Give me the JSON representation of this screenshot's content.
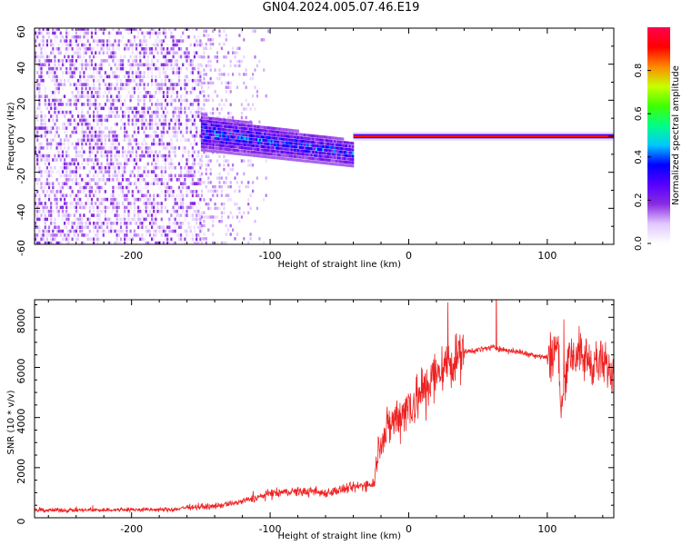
{
  "title": "GN04.2024.005.07.46.E19",
  "chart_data": [
    {
      "type": "heatmap",
      "xlabel": "Height of straight line (km)",
      "ylabel": "Frequency (Hz)",
      "xlim": [
        -270,
        148
      ],
      "ylim": [
        -60,
        60
      ],
      "xticks": [
        -200,
        -100,
        0,
        100
      ],
      "yticks": [
        -60,
        -40,
        -20,
        0,
        20,
        40,
        60
      ],
      "colorbar": {
        "label": "Normalized spectral amplitude",
        "range": [
          0,
          1
        ],
        "ticks": [
          0.0,
          0.2,
          0.4,
          0.6,
          0.8
        ],
        "colormap": [
          "#ffffff",
          "#e0c8ff",
          "#8a2be2",
          "#5500ff",
          "#0000ff",
          "#00c8ff",
          "#00ff88",
          "#40ff00",
          "#c8ff00",
          "#ff8800",
          "#ff0000",
          "#ff0050"
        ]
      },
      "regions": [
        {
          "x": [
            -270,
            -150
          ],
          "freq_spread": [
            -60,
            60
          ],
          "amplitude": [
            0.02,
            0.2
          ],
          "description": "broadband noise"
        },
        {
          "x": [
            -150,
            -40
          ],
          "freq_center": [
            2,
            -10
          ],
          "freq_halfwidth": [
            10,
            7
          ],
          "amplitude": [
            0.15,
            0.5
          ]
        },
        {
          "x": [
            -40,
            148
          ],
          "freq_center": 0,
          "amplitude": [
            0.8,
            0.95
          ]
        }
      ]
    },
    {
      "type": "line",
      "xlabel": "Height of straight line (km)",
      "ylabel": "SNR (10 * v/v)",
      "xlim": [
        -270,
        148
      ],
      "ylim": [
        0,
        8700
      ],
      "xticks": [
        -200,
        -100,
        0,
        100
      ],
      "yticks": [
        0,
        2000,
        4000,
        6000,
        8000
      ],
      "series": [
        {
          "color": "#ee2222",
          "points": [
            [
              -270,
              300
            ],
            [
              -240,
              300
            ],
            [
              -200,
              320
            ],
            [
              -170,
              320
            ],
            [
              -160,
              420
            ],
            [
              -140,
              450
            ],
            [
              -120,
              650
            ],
            [
              -100,
              950
            ],
            [
              -80,
              1050
            ],
            [
              -60,
              1000
            ],
            [
              -40,
              1200
            ],
            [
              -25,
              1400
            ],
            [
              -22,
              2800
            ],
            [
              -15,
              3600
            ],
            [
              -5,
              4200
            ],
            [
              10,
              5000
            ],
            [
              25,
              6000
            ],
            [
              40,
              6600
            ],
            [
              60,
              6800
            ],
            [
              80,
              6600
            ],
            [
              100,
              6400
            ],
            [
              108,
              6800
            ],
            [
              110,
              4200
            ],
            [
              115,
              6600
            ],
            [
              125,
              6400
            ],
            [
              148,
              5900
            ]
          ]
        }
      ]
    }
  ]
}
